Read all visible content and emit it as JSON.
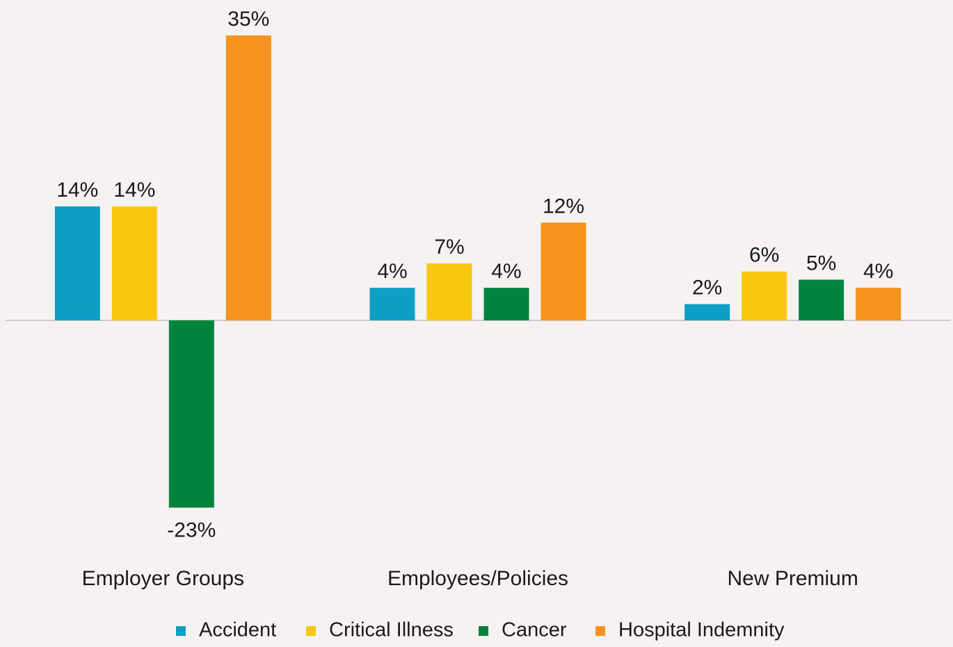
{
  "chart_data": {
    "type": "bar",
    "categories": [
      "Employer Groups",
      "Employees/Policies",
      "New Premium"
    ],
    "series": [
      {
        "name": "Accident",
        "color": "#0e9fc4",
        "values": [
          14,
          4,
          2
        ],
        "value_labels": [
          "14%",
          "4%",
          "2%"
        ]
      },
      {
        "name": "Critical Illness",
        "color": "#f9c80e",
        "values": [
          14,
          7,
          6
        ],
        "value_labels": [
          "14%",
          "7%",
          "6%"
        ]
      },
      {
        "name": "Cancer",
        "color": "#00843d",
        "values": [
          -23,
          4,
          5
        ],
        "value_labels": [
          "-23%",
          "4%",
          "5%"
        ]
      },
      {
        "name": "Hospital Indemnity",
        "color": "#f7931e",
        "values": [
          35,
          12,
          4
        ],
        "value_labels": [
          "35%",
          "12%",
          "4%"
        ]
      }
    ],
    "legend": "bottom"
  }
}
